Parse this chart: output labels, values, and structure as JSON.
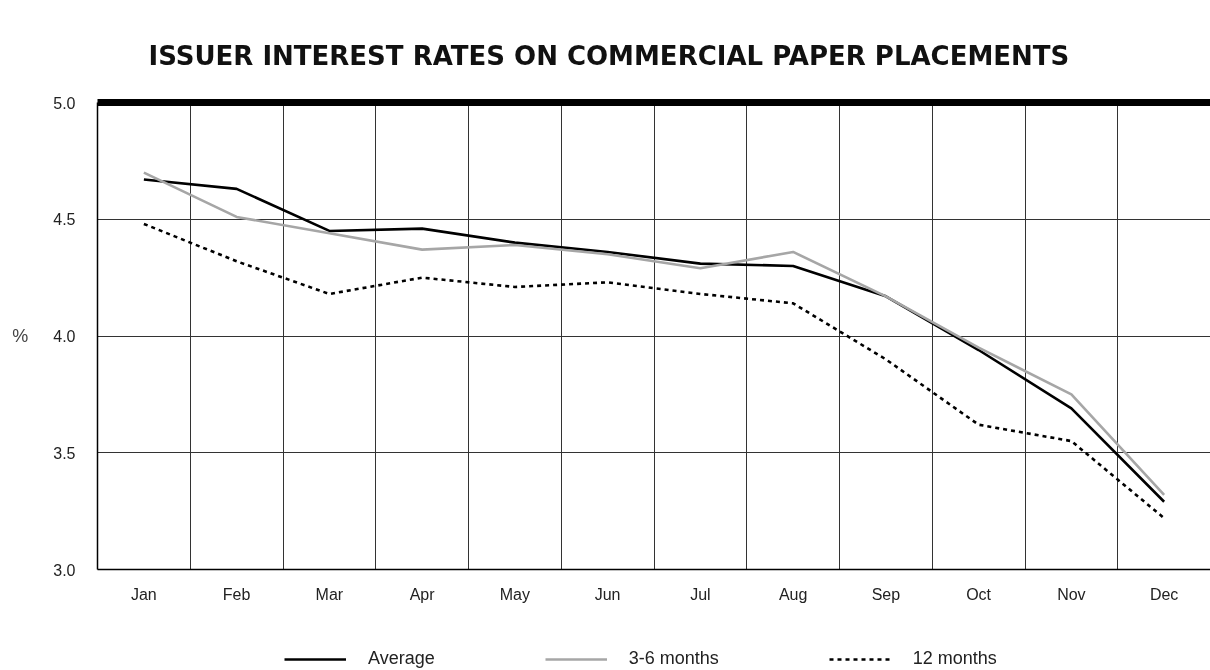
{
  "chart_data": {
    "type": "line",
    "title": "ISSUER INTEREST RATES ON COMMERCIAL PAPER PLACEMENTS",
    "ylabel": "%",
    "categories": [
      "Jan",
      "Feb",
      "Mar",
      "Apr",
      "May",
      "Jun",
      "Jul",
      "Aug",
      "Sep",
      "Oct",
      "Nov",
      "Dec"
    ],
    "series": [
      {
        "name": "Average",
        "color": "#000000",
        "line_style": "solid",
        "values": [
          4.67,
          4.63,
          4.45,
          4.46,
          4.4,
          4.36,
          4.31,
          4.3,
          4.17,
          3.94,
          3.69,
          3.29
        ]
      },
      {
        "name": "3-6 months",
        "color": "#a6a6a6",
        "line_style": "solid",
        "values": [
          4.7,
          4.51,
          4.44,
          4.37,
          4.39,
          4.35,
          4.29,
          4.36,
          4.17,
          3.95,
          3.75,
          3.32
        ]
      },
      {
        "name": "12 months",
        "color": "#000000",
        "line_style": "dashed",
        "values": [
          4.48,
          4.32,
          4.18,
          4.25,
          4.21,
          4.23,
          4.18,
          4.14,
          3.9,
          3.62,
          3.55,
          3.22
        ]
      }
    ],
    "ylim": [
      3,
      5
    ],
    "yticks": [
      {
        "value": 3,
        "label": "3.0"
      },
      {
        "value": 3.5,
        "label": "3.5"
      },
      {
        "value": 4,
        "label": "4.0"
      },
      {
        "value": 4.5,
        "label": "4.5"
      },
      {
        "value": 5,
        "label": "5.0"
      }
    ],
    "grid": true,
    "legend": "bottom"
  }
}
